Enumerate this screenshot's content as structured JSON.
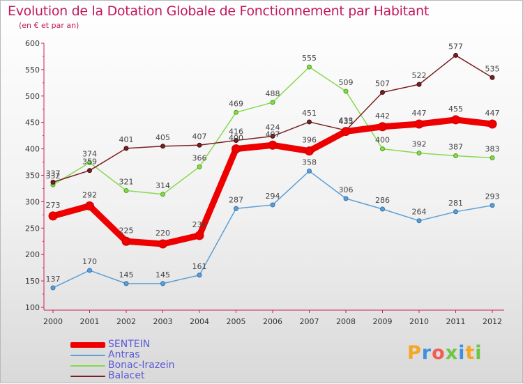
{
  "title": "Evolution de la Dotation Globale de Fonctionnement par Habitant",
  "subtitle": "(en € et par an)",
  "brand": {
    "letters": [
      "P",
      "r",
      "o",
      "x",
      "i",
      "t",
      "i"
    ],
    "colors": [
      "#f5a623",
      "#3d8fe0",
      "#f25c54",
      "#6cc644",
      "#3d8fe0",
      "#f5a623",
      "#6cc644"
    ]
  },
  "chart_data": {
    "type": "line",
    "title": "Evolution de la Dotation Globale de Fonctionnement par Habitant",
    "subtitle": "(en € et par an)",
    "xlabel": "",
    "ylabel": "",
    "ylim": [
      100,
      600
    ],
    "yticks": [
      100,
      150,
      200,
      250,
      300,
      350,
      400,
      450,
      500,
      550,
      600
    ],
    "grid": false,
    "legend": "bottom-left",
    "categories": [
      "2000",
      "2001",
      "2002",
      "2003",
      "2004",
      "2005",
      "2006",
      "2007",
      "2008",
      "2009",
      "2010",
      "2011",
      "2012"
    ],
    "series": [
      {
        "name": "SENTEIN",
        "color": "#ee0000",
        "values": [
          273,
          292,
          225,
          220,
          236,
          400,
          407,
          396,
          433,
          442,
          447,
          455,
          447
        ]
      },
      {
        "name": "Antras",
        "color": "#5b9fd6",
        "values": [
          137,
          170,
          145,
          145,
          161,
          287,
          294,
          358,
          306,
          286,
          264,
          281,
          293
        ]
      },
      {
        "name": "Bonac-Irazein",
        "color": "#86d94e",
        "values": [
          332,
          374,
          321,
          314,
          366,
          469,
          488,
          555,
          509,
          400,
          392,
          387,
          383
        ]
      },
      {
        "name": "Balacet",
        "color": "#7a1f23",
        "values": [
          337,
          359,
          401,
          405,
          407,
          416,
          424,
          451,
          435,
          507,
          522,
          577,
          535
        ]
      }
    ]
  }
}
